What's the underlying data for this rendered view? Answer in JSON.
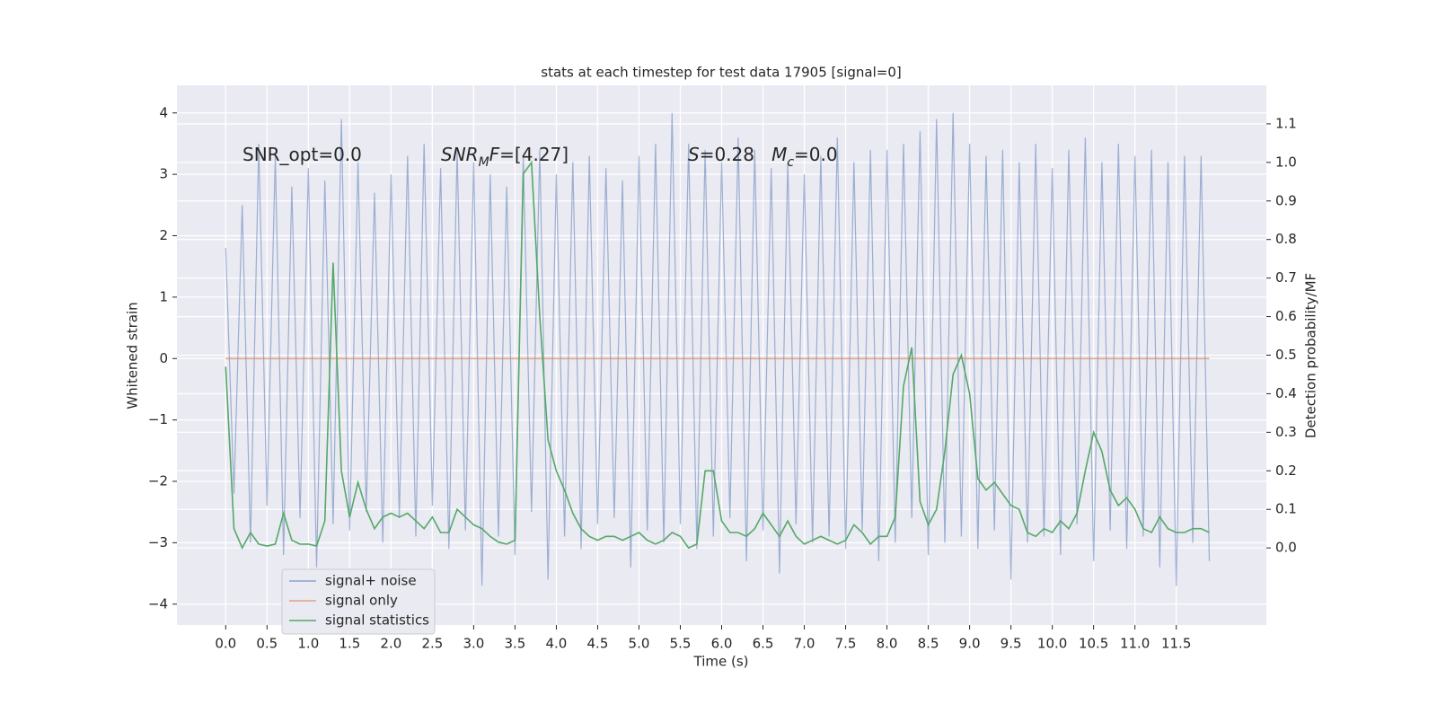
{
  "chart_data": {
    "type": "line",
    "title": "stats at each timestep for test data 17905 [signal=0]",
    "xlabel": "Time (s)",
    "ylabel": "Whitened strain",
    "y2label": "Detection probability/MF",
    "annotations": [
      [
        {
          "text": "SNR_opt=0.0"
        }
      ],
      [
        {
          "text": "SNR",
          "italic": true
        },
        {
          "text": "M",
          "italic": true,
          "sub": true
        },
        {
          "text": "F",
          "italic": true
        },
        {
          "text": "=[4.27]"
        }
      ],
      [
        {
          "text": "S",
          "italic": true
        },
        {
          "text": "=0.28   "
        },
        {
          "text": "M",
          "italic": true
        },
        {
          "text": "c",
          "italic": true,
          "sub": true
        },
        {
          "text": "=0.0"
        }
      ]
    ],
    "x": [
      0,
      0.1,
      0.2,
      0.3,
      0.4,
      0.5,
      0.6,
      0.7,
      0.8,
      0.9,
      1,
      1.1,
      1.2,
      1.3,
      1.4,
      1.5,
      1.6,
      1.7,
      1.8,
      1.9,
      2,
      2.1,
      2.2,
      2.3,
      2.4,
      2.5,
      2.6,
      2.7,
      2.8,
      2.9,
      3,
      3.1,
      3.2,
      3.3,
      3.4,
      3.5,
      3.6,
      3.7,
      3.8,
      3.9,
      4,
      4.1,
      4.2,
      4.3,
      4.4,
      4.5,
      4.6,
      4.7,
      4.8,
      4.9,
      5,
      5.1,
      5.2,
      5.3,
      5.4,
      5.5,
      5.6,
      5.7,
      5.8,
      5.9,
      6,
      6.1,
      6.2,
      6.3,
      6.4,
      6.5,
      6.6,
      6.7,
      6.8,
      6.9,
      7,
      7.1,
      7.2,
      7.3,
      7.4,
      7.5,
      7.6,
      7.7,
      7.8,
      7.9,
      8,
      8.1,
      8.2,
      8.3,
      8.4,
      8.5,
      8.6,
      8.7,
      8.8,
      8.9,
      9,
      9.1,
      9.2,
      9.3,
      9.4,
      9.5,
      9.6,
      9.7,
      9.8,
      9.9,
      10,
      10.1,
      10.2,
      10.3,
      10.4,
      10.5,
      10.6,
      10.7,
      10.8,
      10.9,
      11,
      11.1,
      11.2,
      11.3,
      11.4,
      11.5,
      11.6,
      11.7,
      11.8,
      11.9
    ],
    "series": [
      {
        "name": "signal+ noise",
        "color": "#4c72b0",
        "values": [
          1.8,
          -2.2,
          2.5,
          -3.0,
          3.5,
          -2.4,
          3.3,
          -3.2,
          2.8,
          -2.6,
          3.1,
          -3.4,
          2.9,
          -2.7,
          3.9,
          -2.8,
          3.2,
          -2.5,
          2.7,
          -3.0,
          3.0,
          -2.6,
          3.3,
          -2.9,
          3.5,
          -2.4,
          3.1,
          -3.1,
          3.4,
          -2.8,
          3.2,
          -3.7,
          3.0,
          -2.9,
          2.8,
          -3.2,
          3.3,
          -2.5,
          3.4,
          -3.6,
          3.0,
          -2.9,
          3.2,
          -3.1,
          3.3,
          -2.7,
          3.1,
          -2.6,
          2.9,
          -3.4,
          3.3,
          -2.8,
          3.5,
          -3.0,
          4.0,
          -2.7,
          3.5,
          -3.1,
          3.4,
          -2.9,
          3.2,
          -2.6,
          3.6,
          -3.3,
          3.4,
          -2.8,
          3.1,
          -3.5,
          3.2,
          -2.7,
          3.0,
          -3.0,
          3.3,
          -2.9,
          3.6,
          -3.1,
          3.2,
          -2.8,
          3.4,
          -3.3,
          3.4,
          -3.0,
          3.5,
          -2.6,
          3.7,
          -3.2,
          3.9,
          -3.0,
          4.0,
          -2.9,
          3.5,
          -3.1,
          3.3,
          -2.8,
          3.4,
          -3.6,
          3.2,
          -3.0,
          3.5,
          -2.9,
          3.1,
          -3.2,
          3.4,
          -2.7,
          3.6,
          -3.3,
          3.2,
          -2.8,
          3.5,
          -3.1,
          3.3,
          -2.9,
          3.4,
          -3.4,
          3.2,
          -3.7,
          3.3,
          -3.0,
          3.3,
          -3.3
        ]
      },
      {
        "name": "signal only",
        "color": "#dd8452",
        "values": [
          0,
          0,
          0,
          0,
          0,
          0,
          0,
          0,
          0,
          0,
          0,
          0,
          0,
          0,
          0,
          0,
          0,
          0,
          0,
          0,
          0,
          0,
          0,
          0,
          0,
          0,
          0,
          0,
          0,
          0,
          0,
          0,
          0,
          0,
          0,
          0,
          0,
          0,
          0,
          0,
          0,
          0,
          0,
          0,
          0,
          0,
          0,
          0,
          0,
          0,
          0,
          0,
          0,
          0,
          0,
          0,
          0,
          0,
          0,
          0,
          0,
          0,
          0,
          0,
          0,
          0,
          0,
          0,
          0,
          0,
          0,
          0,
          0,
          0,
          0,
          0,
          0,
          0,
          0,
          0,
          0,
          0,
          0,
          0,
          0,
          0,
          0,
          0,
          0,
          0,
          0,
          0,
          0,
          0,
          0,
          0,
          0,
          0,
          0,
          0,
          0,
          0,
          0,
          0,
          0,
          0,
          0,
          0,
          0,
          0,
          0,
          0,
          0,
          0,
          0,
          0,
          0,
          0,
          0,
          0
        ]
      },
      {
        "name": "signal statistics",
        "color": "#55a868",
        "axis": "y2",
        "values": [
          0.47,
          0.05,
          0.0,
          0.04,
          0.01,
          0.005,
          0.01,
          0.09,
          0.02,
          0.01,
          0.01,
          0.005,
          0.07,
          0.74,
          0.2,
          0.08,
          0.17,
          0.1,
          0.05,
          0.08,
          0.09,
          0.08,
          0.09,
          0.07,
          0.05,
          0.08,
          0.04,
          0.04,
          0.1,
          0.08,
          0.06,
          0.05,
          0.03,
          0.015,
          0.01,
          0.02,
          0.97,
          1.0,
          0.6,
          0.28,
          0.2,
          0.15,
          0.09,
          0.05,
          0.03,
          0.02,
          0.03,
          0.03,
          0.02,
          0.03,
          0.04,
          0.02,
          0.01,
          0.02,
          0.04,
          0.03,
          0.0,
          0.01,
          0.2,
          0.2,
          0.07,
          0.04,
          0.04,
          0.03,
          0.05,
          0.09,
          0.06,
          0.03,
          0.07,
          0.03,
          0.01,
          0.02,
          0.03,
          0.02,
          0.01,
          0.02,
          0.06,
          0.04,
          0.01,
          0.03,
          0.03,
          0.08,
          0.42,
          0.52,
          0.12,
          0.06,
          0.1,
          0.25,
          0.45,
          0.5,
          0.4,
          0.18,
          0.15,
          0.17,
          0.14,
          0.11,
          0.1,
          0.04,
          0.03,
          0.05,
          0.04,
          0.07,
          0.05,
          0.09,
          0.2,
          0.3,
          0.25,
          0.15,
          0.11,
          0.13,
          0.1,
          0.05,
          0.04,
          0.08,
          0.05,
          0.04,
          0.04,
          0.05,
          0.05,
          0.04
        ]
      }
    ],
    "xlim": [
      -0.59,
      12.59
    ],
    "ylim": [
      -4.34,
      4.45
    ],
    "y2lim": [
      -0.2,
      1.2
    ],
    "xticks": [
      {
        "value": 0,
        "label": "0.0"
      },
      0.5,
      {
        "value": 1,
        "label": "1.0"
      },
      1.5,
      {
        "value": 2,
        "label": "2.0"
      },
      2.5,
      {
        "value": 3,
        "label": "3.0"
      },
      3.5,
      {
        "value": 4,
        "label": "4.0"
      },
      4.5,
      {
        "value": 5,
        "label": "5.0"
      },
      5.5,
      {
        "value": 6,
        "label": "6.0"
      },
      6.5,
      {
        "value": 7,
        "label": "7.0"
      },
      7.5,
      {
        "value": 8,
        "label": "8.0"
      },
      8.5,
      {
        "value": 9,
        "label": "9.0"
      },
      9.5,
      {
        "value": 10,
        "label": "10.0"
      },
      10.5,
      {
        "value": 11,
        "label": "11.0"
      },
      11.5
    ],
    "yticks": [
      {
        "value": -4,
        "label": "−4"
      },
      {
        "value": -3,
        "label": "−3"
      },
      {
        "value": -2,
        "label": "−2"
      },
      {
        "value": -1,
        "label": "−1"
      },
      0,
      1,
      2,
      3,
      4
    ],
    "y2ticks": [
      {
        "value": 0,
        "label": "0.0"
      },
      0.1,
      0.2,
      0.3,
      0.4,
      0.5,
      0.6,
      0.7,
      0.8,
      0.9,
      {
        "value": 1,
        "label": "1.0"
      },
      1.1
    ],
    "grid": true,
    "legend": "lower left"
  }
}
